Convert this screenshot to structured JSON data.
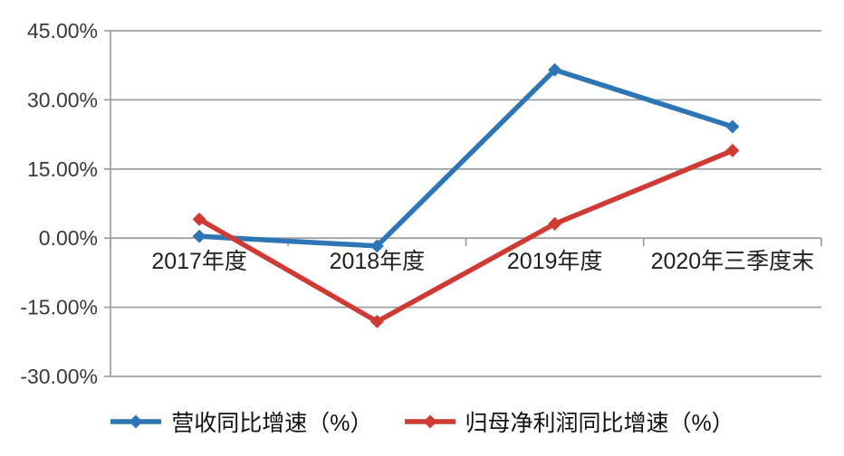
{
  "chart_data": {
    "type": "line",
    "categories": [
      "2017年度",
      "2018年度",
      "2019年度",
      "2020年三季度末"
    ],
    "series": [
      {
        "name": "营收同比增速（%）",
        "color": "#2E75B6",
        "values": [
          0.4,
          -1.7,
          36.5,
          24.2
        ]
      },
      {
        "name": "归母净利润同比增速（%）",
        "color": "#D03A35",
        "values": [
          4.1,
          -18.1,
          3.1,
          19.0
        ]
      }
    ],
    "title": "",
    "xlabel": "",
    "ylabel": "",
    "ylim": [
      -30,
      45
    ],
    "y_ticks": {
      "values": [
        45,
        30,
        15,
        0,
        -15,
        -30
      ],
      "labels": [
        "45.00%",
        "30.00%",
        "15.00%",
        "0.00%",
        "-15.00%",
        "-30.00%"
      ]
    },
    "x_axis_at_value": 0,
    "grid": true,
    "marker": "diamond",
    "legend_position": "bottom",
    "colors": {
      "grid": "#A0A0A0",
      "axis": "#A0A0A0",
      "tick_text": "#3A3A3A",
      "category_text": "#1F1F1F",
      "legend_text": "#111111",
      "background": "#FFFFFF"
    }
  }
}
